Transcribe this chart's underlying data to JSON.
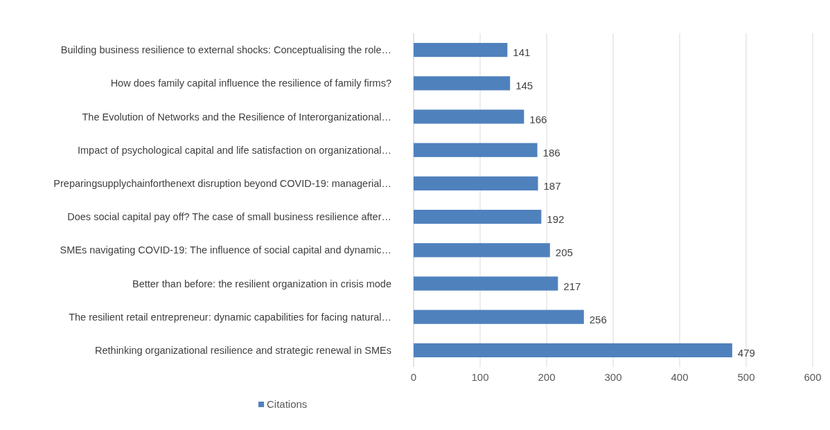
{
  "chart_data": {
    "type": "bar",
    "orientation": "horizontal",
    "categories": [
      "Building business resilience to external shocks: Conceptualising the role…",
      "How does family capital influence the resilience of family firms?",
      "The Evolution of Networks and the Resilience of Interorganizational…",
      "Impact of psychological capital and life satisfaction on organizational…",
      "Preparingsupplychainforthenext disruption beyond COVID-19: managerial…",
      "Does social capital pay off? The case of small business resilience after…",
      "SMEs navigating COVID-19: The influence of social capital and dynamic…",
      "Better than before: the resilient organization in crisis mode",
      "The resilient retail entrepreneur: dynamic capabilities for facing natural…",
      "Rethinking organizational resilience and strategic renewal in SMEs"
    ],
    "series": [
      {
        "name": "Citations",
        "color": "#4f81bd",
        "values": [
          141,
          145,
          166,
          186,
          187,
          192,
          205,
          217,
          256,
          479
        ]
      }
    ],
    "xlim": [
      0,
      600
    ],
    "xticks": [
      0,
      100,
      200,
      300,
      400,
      500,
      600
    ],
    "grid": "x",
    "legend": "bottom left",
    "data_labels": true
  }
}
